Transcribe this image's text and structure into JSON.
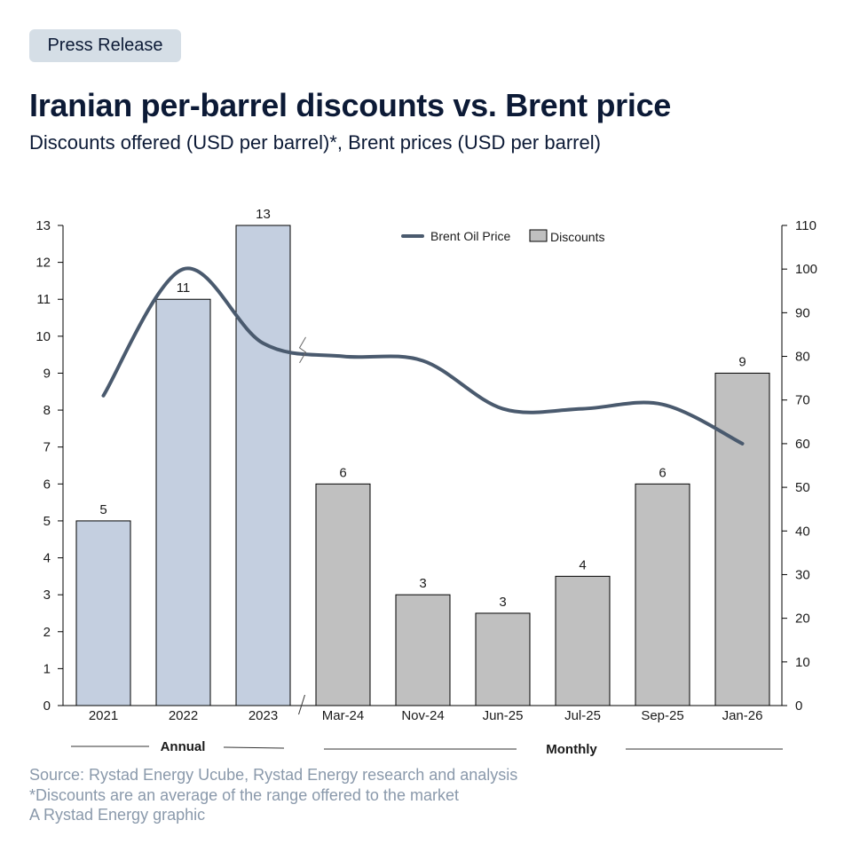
{
  "header": {
    "badge": "Press Release",
    "title": "Iranian per-barrel discounts vs. Brent price",
    "subtitle": "Discounts offered (USD per barrel)*, Brent prices (USD per barrel)"
  },
  "footer": {
    "source": "Source: Rystad Energy Ucube, Rystad Energy research and analysis",
    "note": "*Discounts are an average of the range offered to the market",
    "credit": "A Rystad Energy graphic"
  },
  "colors": {
    "annual_bar": "#c4cfe0",
    "monthly_bar": "#c0c0c0",
    "line": "#4a5a6e",
    "text": "#0c1a36",
    "footer_text": "#8a99ab",
    "badge_bg": "#d5dee6"
  },
  "chart_data": {
    "type": "bar+line",
    "title": "Iranian per-barrel discounts vs. Brent price",
    "categories": [
      "2021",
      "2022",
      "2023",
      "Mar-24",
      "Nov-24",
      "Jun-25",
      "Jul-25",
      "Sep-25",
      "Jan-26"
    ],
    "groups": [
      {
        "label": "Annual",
        "categories": [
          "2021",
          "2022",
          "2023"
        ]
      },
      {
        "label": "Monthly",
        "categories": [
          "Mar-24",
          "Nov-24",
          "Jun-25",
          "Jul-25",
          "Sep-25",
          "Jan-26"
        ]
      }
    ],
    "series": [
      {
        "name": "Discounts",
        "type": "bar",
        "axis": "left",
        "values": [
          5,
          11,
          13,
          6,
          3,
          2.5,
          3.5,
          6,
          9
        ],
        "labels": [
          "5",
          "11",
          "13",
          "6",
          "3",
          "3",
          "4",
          "6",
          "9"
        ]
      },
      {
        "name": "Brent Oil Price",
        "type": "line",
        "axis": "right",
        "smooth": true,
        "values": [
          71,
          100,
          83,
          80,
          79,
          68,
          68,
          69,
          60
        ]
      }
    ],
    "legend": [
      "Brent Oil Price",
      "Discounts"
    ],
    "legend_position": "top-center",
    "y_left": {
      "min": 0,
      "max": 13,
      "ticks": [
        0,
        1,
        2,
        3,
        4,
        5,
        6,
        7,
        8,
        9,
        10,
        11,
        12,
        13
      ]
    },
    "y_right": {
      "min": 0,
      "max": 110,
      "ticks": [
        0,
        10,
        20,
        30,
        40,
        50,
        60,
        70,
        80,
        90,
        100,
        110
      ]
    },
    "grid": false,
    "axis_break_after": "2023"
  }
}
